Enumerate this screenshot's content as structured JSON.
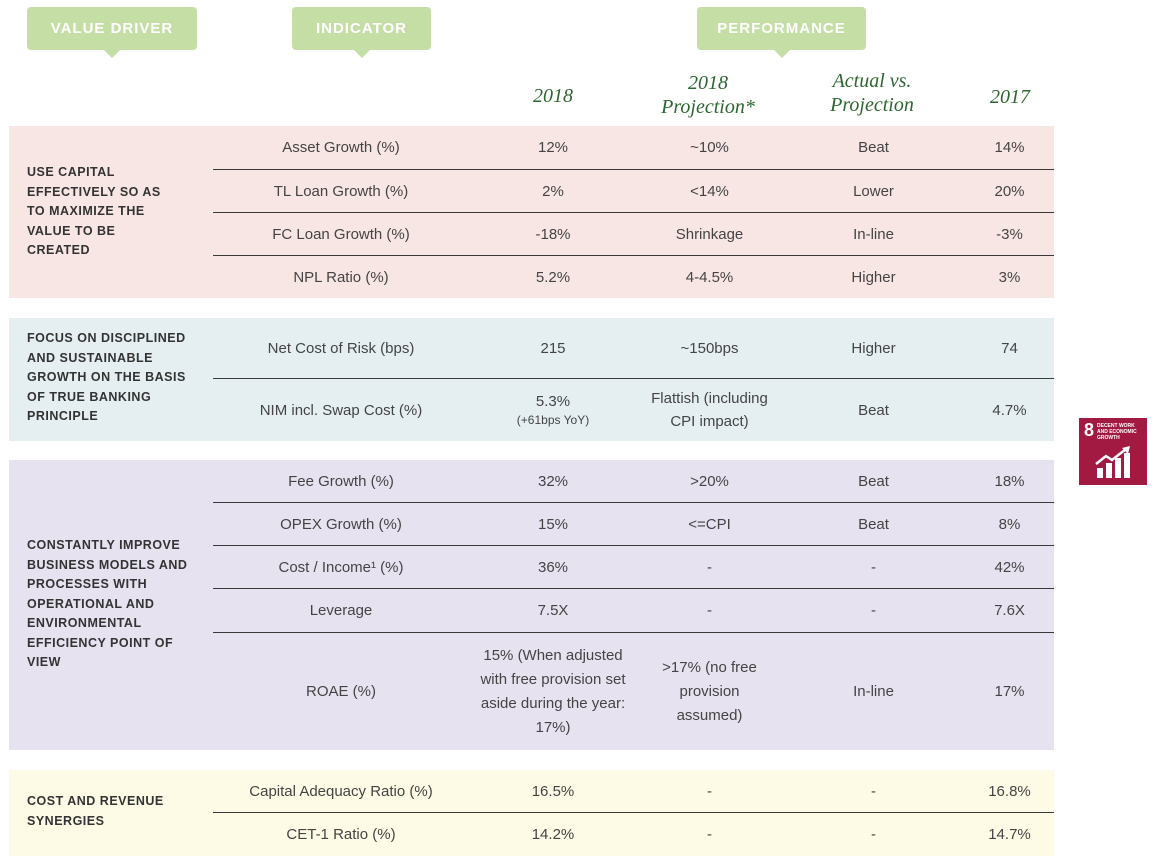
{
  "headers": {
    "value_driver": "VALUE DRIVER",
    "indicator": "INDICATOR",
    "performance": "PERFORMANCE",
    "col_2018": "2018",
    "col_projection": "2018 Projection*",
    "col_actual_vs": "Actual vs. Projection",
    "col_2017": "2017"
  },
  "colors": {
    "header_green": "#c5dea5",
    "col_text_green": "#2d6630",
    "section1_bg": "#f8e6e4",
    "section2_bg": "#e5eff2",
    "section3_bg": "#e6e2f0",
    "section4_bg": "#fdfae6",
    "sdg_red": "#a21942"
  },
  "sections": [
    {
      "driver": "USE CAPITAL EFFECTIVELY SO AS TO MAXIMIZE THE VALUE TO BE CREATED",
      "rows": [
        {
          "indicator": "Asset Growth (%)",
          "v2018": "12%",
          "projection": "~10%",
          "actual": "Beat",
          "v2017": "14%"
        },
        {
          "indicator": "TL Loan Growth (%)",
          "v2018": "2%",
          "projection": "<14%",
          "actual": "Lower",
          "v2017": "20%"
        },
        {
          "indicator": "FC Loan Growth (%)",
          "v2018": "-18%",
          "projection": "Shrinkage",
          "actual": "In-line",
          "v2017": "-3%"
        },
        {
          "indicator": "NPL Ratio (%)",
          "v2018": "5.2%",
          "projection": "4-4.5%",
          "actual": "Higher",
          "v2017": "3%"
        }
      ]
    },
    {
      "driver": "FOCUS ON DISCIPLINED AND SUSTAINABLE GROWTH ON THE BASIS OF TRUE BANKING PRINCIPLE",
      "rows": [
        {
          "indicator": "Net Cost of Risk (bps)",
          "v2018": "215",
          "projection": "~150bps",
          "actual": "Higher",
          "v2017": "74"
        },
        {
          "indicator": "NIM incl. Swap Cost (%)",
          "v2018": "5.3%",
          "v2018_note": "(+61bps YoY)",
          "projection": "Flattish (including CPI impact)",
          "actual": "Beat",
          "v2017": "4.7%"
        }
      ]
    },
    {
      "driver": "CONSTANTLY IMPROVE BUSINESS MODELS AND PROCESSES WITH OPERATIONAL AND ENVIRONMENTAL EFFICIENCY POINT OF VIEW",
      "rows": [
        {
          "indicator": "Fee Growth (%)",
          "v2018": "32%",
          "projection": ">20%",
          "actual": "Beat",
          "v2017": "18%"
        },
        {
          "indicator": "OPEX Growth (%)",
          "v2018": "15%",
          "projection": "<=CPI",
          "actual": "Beat",
          "v2017": "8%"
        },
        {
          "indicator": "Cost / Income¹ (%)",
          "v2018": "36%",
          "projection": "-",
          "actual": "-",
          "v2017": "42%"
        },
        {
          "indicator": "Leverage",
          "v2018": "7.5X",
          "projection": "-",
          "actual": "-",
          "v2017": "7.6X"
        },
        {
          "indicator": "ROAE (%)",
          "v2018": "15% (When adjusted with free provision set aside during the year: 17%)",
          "projection": ">17% (no free provision assumed)",
          "actual": "In-line",
          "v2017": "17%"
        }
      ]
    },
    {
      "driver": "COST AND REVENUE SYNERGIES",
      "rows": [
        {
          "indicator": "Capital Adequacy Ratio (%)",
          "v2018": "16.5%",
          "projection": "-",
          "actual": "-",
          "v2017": "16.8%"
        },
        {
          "indicator": "CET-1 Ratio (%)",
          "v2018": "14.2%",
          "projection": "-",
          "actual": "-",
          "v2017": "14.7%"
        }
      ]
    }
  ],
  "sdg": {
    "number": "8",
    "label": "DECENT WORK AND ECONOMIC GROWTH",
    "icon": "growth-chart-icon"
  }
}
